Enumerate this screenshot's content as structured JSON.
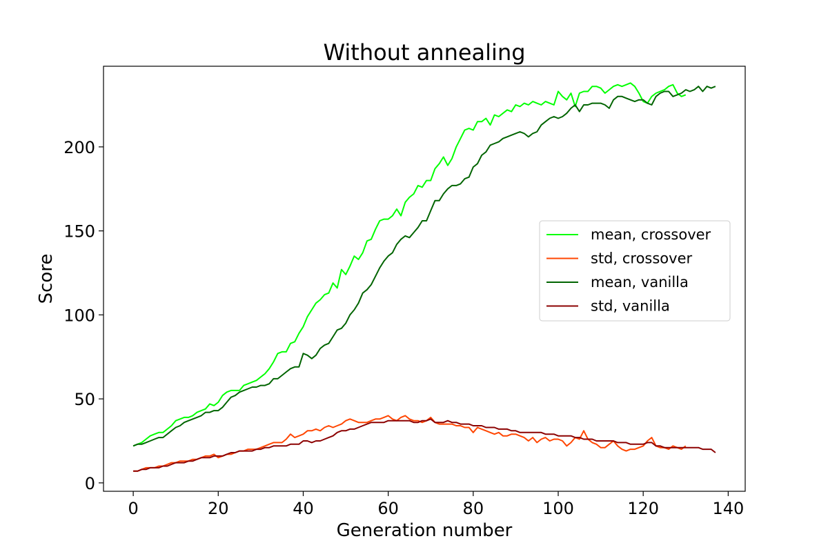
{
  "chart_data": {
    "type": "line",
    "title": "Without annealing",
    "xlabel": "Generation number",
    "ylabel": "Score",
    "xlim": [
      -7,
      144
    ],
    "ylim": [
      -5,
      248
    ],
    "xticks": [
      0,
      20,
      40,
      60,
      80,
      100,
      120,
      140
    ],
    "yticks": [
      0,
      50,
      100,
      150,
      200
    ],
    "grid": false,
    "legend_position": "center-right",
    "series": [
      {
        "name": "mean, crossover",
        "color": "#00ff00",
        "x_start": 0,
        "values": [
          22,
          23,
          24,
          26,
          28,
          29,
          30,
          30,
          32,
          34,
          37,
          38,
          39,
          39,
          40,
          42,
          43,
          44,
          47,
          46,
          48,
          52,
          54,
          55,
          55,
          55,
          58,
          59,
          60,
          61,
          63,
          65,
          68,
          72,
          77,
          78,
          78,
          83,
          84,
          89,
          93,
          99,
          103,
          107,
          109,
          112,
          113,
          119,
          116,
          127,
          124,
          129,
          135,
          133,
          137,
          144,
          145,
          151,
          156,
          157,
          157,
          159,
          163,
          159,
          167,
          170,
          172,
          177,
          176,
          180,
          180,
          187,
          190,
          194,
          189,
          193,
          200,
          205,
          210,
          211,
          210,
          215,
          215,
          217,
          213,
          219,
          218,
          220,
          222,
          221,
          225,
          224,
          226,
          225,
          227,
          226,
          225,
          227,
          226,
          225,
          233,
          230,
          228,
          232,
          224,
          232,
          233,
          233,
          236,
          236,
          235,
          232,
          234,
          236,
          237,
          236,
          237,
          238,
          236,
          232,
          227,
          226,
          230,
          232,
          233,
          234,
          236,
          237,
          232,
          230,
          231
        ]
      },
      {
        "name": "std, crossover",
        "color": "#ff4500",
        "x_start": 0,
        "values": [
          7,
          7,
          8,
          9,
          9,
          9,
          10,
          10,
          11,
          12,
          12,
          13,
          13,
          13,
          14,
          14,
          15,
          16,
          16,
          17,
          15,
          16,
          17,
          17,
          18,
          19,
          19,
          20,
          20,
          20,
          21,
          22,
          23,
          24,
          24,
          24,
          26,
          29,
          27,
          28,
          29,
          31,
          31,
          32,
          31,
          33,
          34,
          33,
          34,
          35,
          37,
          38,
          37,
          36,
          36,
          36,
          37,
          38,
          38,
          39,
          40,
          38,
          37,
          39,
          40,
          38,
          37,
          37,
          36,
          37,
          39,
          36,
          35,
          35,
          35,
          35,
          34,
          34,
          33,
          33,
          30,
          33,
          32,
          31,
          30,
          29,
          30,
          28,
          28,
          29,
          29,
          28,
          27,
          25,
          27,
          24,
          26,
          27,
          25,
          26,
          26,
          25,
          22,
          24,
          27,
          26,
          31,
          26,
          24,
          23,
          21,
          21,
          23,
          25,
          22,
          20,
          19,
          20,
          20,
          21,
          22,
          25,
          27,
          22,
          21,
          21,
          20,
          22,
          21,
          20,
          22
        ]
      },
      {
        "name": "mean, vanilla",
        "color": "#006400",
        "x_start": 0,
        "values": [
          22,
          23,
          23,
          24,
          25,
          26,
          27,
          27,
          29,
          31,
          33,
          34,
          36,
          37,
          38,
          39,
          40,
          42,
          42,
          43,
          43,
          45,
          48,
          51,
          52,
          54,
          55,
          56,
          57,
          57,
          58,
          58,
          59,
          62,
          62,
          64,
          66,
          68,
          69,
          69,
          77,
          76,
          74,
          76,
          80,
          82,
          83,
          87,
          91,
          92,
          95,
          100,
          103,
          107,
          113,
          115,
          118,
          123,
          128,
          132,
          135,
          137,
          142,
          145,
          147,
          146,
          149,
          152,
          156,
          156,
          162,
          168,
          168,
          172,
          175,
          177,
          177,
          178,
          181,
          182,
          188,
          190,
          195,
          197,
          201,
          202,
          203,
          205,
          206,
          207,
          208,
          209,
          208,
          206,
          208,
          209,
          213,
          215,
          217,
          218,
          217,
          218,
          220,
          223,
          225,
          221,
          225,
          225,
          226,
          226,
          226,
          225,
          223,
          228,
          230,
          230,
          229,
          228,
          227,
          228,
          228,
          226,
          225,
          230,
          232,
          233,
          233,
          230,
          231,
          232,
          234,
          233,
          234,
          236,
          233,
          236,
          235,
          236
        ]
      },
      {
        "name": "std, vanilla",
        "color": "#8b0000",
        "x_start": 0,
        "values": [
          7,
          7,
          8,
          8,
          9,
          9,
          9,
          10,
          10,
          11,
          12,
          12,
          12,
          13,
          13,
          14,
          15,
          15,
          15,
          16,
          16,
          16,
          17,
          18,
          18,
          19,
          19,
          19,
          19,
          20,
          20,
          21,
          21,
          22,
          22,
          22,
          22,
          23,
          23,
          23,
          25,
          25,
          24,
          25,
          25,
          26,
          27,
          28,
          30,
          31,
          31,
          32,
          32,
          33,
          34,
          35,
          36,
          36,
          36,
          36,
          37,
          37,
          37,
          37,
          37,
          37,
          36,
          36,
          37,
          37,
          38,
          36,
          36,
          36,
          37,
          36,
          36,
          35,
          35,
          35,
          34,
          34,
          34,
          33,
          33,
          33,
          32,
          32,
          32,
          31,
          31,
          30,
          30,
          30,
          30,
          30,
          30,
          29,
          29,
          29,
          28,
          28,
          28,
          28,
          27,
          27,
          26,
          26,
          26,
          25,
          25,
          25,
          25,
          25,
          24,
          24,
          24,
          23,
          23,
          23,
          23,
          24,
          24,
          22,
          22,
          21,
          21,
          21,
          21,
          21,
          21,
          21,
          21,
          21,
          20,
          20,
          20,
          18
        ]
      }
    ]
  }
}
